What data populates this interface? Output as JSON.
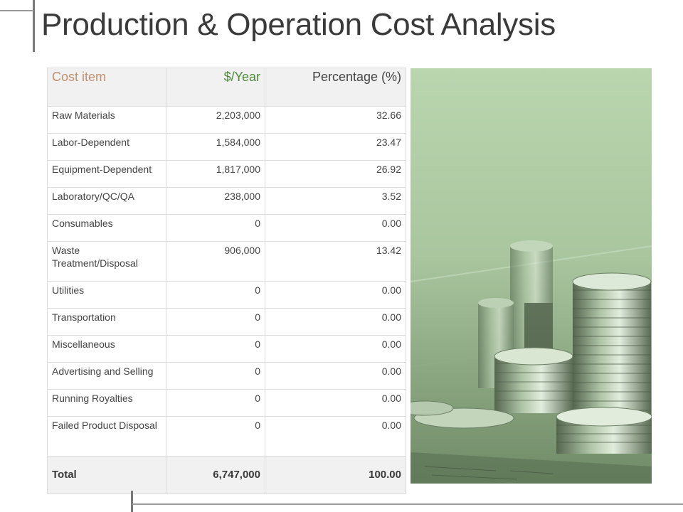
{
  "title": "Production & Operation Cost Analysis",
  "table": {
    "headers": [
      "Cost item",
      "$/Year",
      "Percentage (%)"
    ],
    "rows": [
      {
        "item": "Raw Materials",
        "year": "2,203,000",
        "pct": "32.66"
      },
      {
        "item": "Labor-Dependent",
        "year": "1,584,000",
        "pct": "23.47"
      },
      {
        "item": "Equipment-Dependent",
        "year": "1,817,000",
        "pct": "26.92"
      },
      {
        "item": "Laboratory/QC/QA",
        "year": "238,000",
        "pct": "3.52"
      },
      {
        "item": "Consumables",
        "year": "0",
        "pct": "0.00"
      },
      {
        "item": "Waste Treatment/Disposal",
        "year": "906,000",
        "pct": "13.42"
      },
      {
        "item": "Utilities",
        "year": "0",
        "pct": "0.00"
      },
      {
        "item": "Transportation",
        "year": "0",
        "pct": "0.00"
      },
      {
        "item": "Miscellaneous",
        "year": "0",
        "pct": "0.00"
      },
      {
        "item": "Advertising and Selling",
        "year": "0",
        "pct": "0.00"
      },
      {
        "item": "Running Royalties",
        "year": "0",
        "pct": "0.00"
      },
      {
        "item": "Failed Product Disposal",
        "year": "0",
        "pct": "0.00"
      }
    ],
    "total": {
      "label": "Total",
      "year": "6,747,000",
      "pct": "100.00"
    }
  },
  "colors": {
    "header_cost_item": "#c09070",
    "header_year": "#4e8a3a",
    "photo_tint": "#b7d4ad"
  },
  "image": {
    "subject": "coins-stack-photo"
  }
}
